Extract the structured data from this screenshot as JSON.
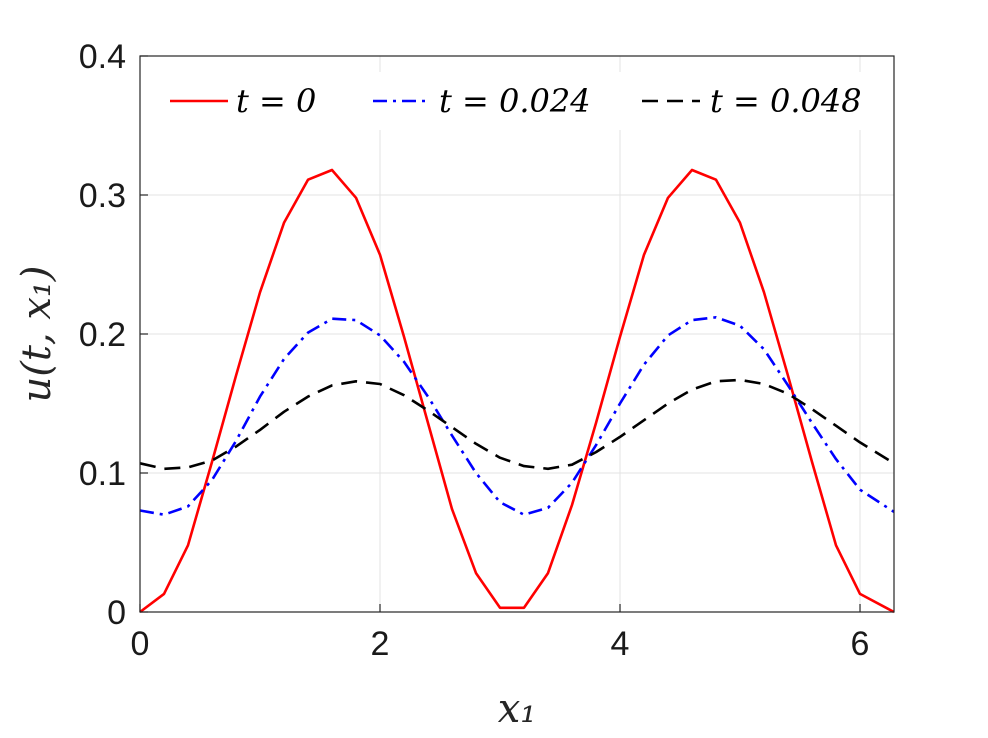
{
  "chart_data": {
    "type": "line",
    "title": "",
    "xlabel": "x₁",
    "ylabel": "u(t, x₁)",
    "xlim": [
      0,
      6.2832
    ],
    "ylim": [
      0,
      0.4
    ],
    "xticks": [
      0,
      2,
      4,
      6
    ],
    "xtick_labels": [
      "0",
      "2",
      "4",
      "6"
    ],
    "yticks": [
      0,
      0.1,
      0.2,
      0.3,
      0.4
    ],
    "ytick_labels": [
      "0",
      "0.1",
      "0.2",
      "0.3",
      "0.4"
    ],
    "grid": true,
    "legend_position": "top",
    "x": [
      0,
      0.2,
      0.4,
      0.6,
      0.8,
      1.0,
      1.2,
      1.4,
      1.6,
      1.8,
      2.0,
      2.2,
      2.4,
      2.6,
      2.8,
      3.0,
      3.2,
      3.4,
      3.6,
      3.8,
      4.0,
      4.2,
      4.4,
      4.6,
      4.8,
      5.0,
      5.2,
      5.4,
      5.6,
      5.8,
      6.0,
      6.2832
    ],
    "series": [
      {
        "name": "t = 0",
        "color": "#ff0000",
        "style": "solid",
        "values": [
          0.0,
          0.013,
          0.048,
          0.108,
          0.17,
          0.23,
          0.28,
          0.311,
          0.318,
          0.298,
          0.257,
          0.198,
          0.136,
          0.074,
          0.028,
          0.003,
          0.003,
          0.028,
          0.077,
          0.136,
          0.198,
          0.257,
          0.298,
          0.318,
          0.311,
          0.28,
          0.23,
          0.17,
          0.108,
          0.048,
          0.013,
          0.0
        ]
      },
      {
        "name": "t = 0.024",
        "color": "#0000ff",
        "style": "dashdot",
        "values": [
          0.073,
          0.07,
          0.076,
          0.095,
          0.123,
          0.155,
          0.182,
          0.201,
          0.211,
          0.21,
          0.199,
          0.18,
          0.155,
          0.127,
          0.1,
          0.079,
          0.07,
          0.075,
          0.093,
          0.12,
          0.15,
          0.178,
          0.199,
          0.21,
          0.212,
          0.206,
          0.189,
          0.163,
          0.136,
          0.11,
          0.088,
          0.072
        ]
      },
      {
        "name": "t = 0.048",
        "color": "#000000",
        "style": "dashed",
        "values": [
          0.107,
          0.103,
          0.104,
          0.109,
          0.119,
          0.131,
          0.144,
          0.155,
          0.163,
          0.166,
          0.164,
          0.156,
          0.145,
          0.133,
          0.121,
          0.111,
          0.105,
          0.103,
          0.106,
          0.115,
          0.126,
          0.138,
          0.15,
          0.16,
          0.166,
          0.167,
          0.164,
          0.157,
          0.146,
          0.134,
          0.122,
          0.107
        ]
      }
    ]
  }
}
